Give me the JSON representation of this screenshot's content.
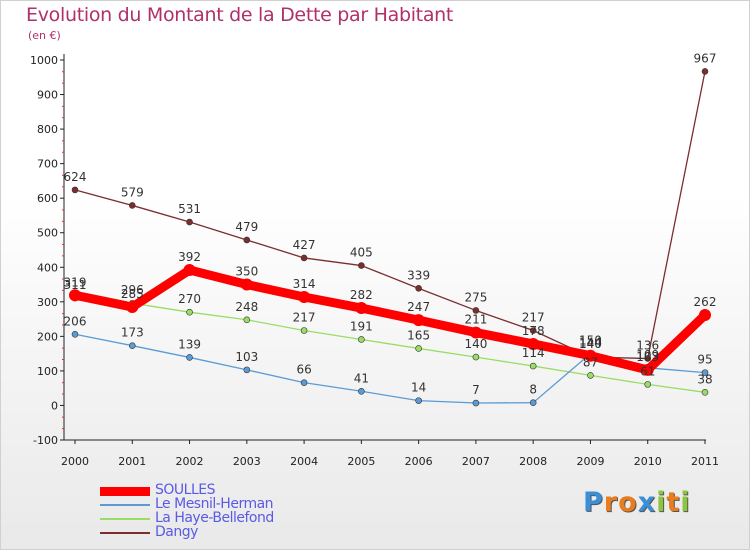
{
  "title": "Evolution du Montant de la Dette par Habitant",
  "subtitle": "(en €)",
  "logo": {
    "text": "Proxiti",
    "letters": [
      "P",
      "r",
      "o",
      "x",
      "i",
      "t",
      "i"
    ],
    "colors": [
      "#3a8fd6",
      "#e87d1f",
      "#e87d1f",
      "#3a8fd6",
      "#8cc63f",
      "#e87d1f",
      "#8cc63f"
    ]
  },
  "chart_data": {
    "type": "line",
    "title": "Evolution du Montant de la Dette par Habitant",
    "ylabel": "(en €)",
    "xlabel": "",
    "x": [
      "2000",
      "2001",
      "2002",
      "2003",
      "2004",
      "2005",
      "2006",
      "2007",
      "2008",
      "2009",
      "2010",
      "2011"
    ],
    "ylim": [
      -100,
      1000
    ],
    "yticks": [
      "-100",
      "0",
      "100",
      "200",
      "300",
      "400",
      "500",
      "600",
      "700",
      "800",
      "900",
      "1000"
    ],
    "grid": false,
    "legend_position": "bottom-left",
    "series": [
      {
        "name": "SOULLES",
        "color": "#ff0000",
        "values": [
          319,
          285,
          392,
          350,
          314,
          282,
          247,
          211,
          178,
          144,
          103,
          262
        ],
        "labels": [
          "319",
          "285",
          "392",
          "350",
          "314",
          "282",
          "247",
          "211",
          "178",
          "144",
          "103",
          "262"
        ]
      },
      {
        "name": "Le Mesnil-Herman",
        "color": "#5b9bd5",
        "values": [
          206,
          173,
          139,
          103,
          66,
          41,
          14,
          7,
          8,
          150,
          109,
          95
        ],
        "labels": [
          "206",
          "173",
          "139",
          "103",
          "66",
          "41",
          "14",
          "7",
          "8",
          "150",
          "109",
          "95"
        ]
      },
      {
        "name": "La Haye-Bellefond",
        "color": "#99dd66",
        "values": [
          311,
          296,
          270,
          248,
          217,
          191,
          165,
          140,
          114,
          87,
          61,
          38
        ],
        "labels": [
          "311",
          "296",
          "270",
          "248",
          "217",
          "191",
          "165",
          "140",
          "114",
          "87",
          "61",
          "38"
        ]
      },
      {
        "name": "Dangy",
        "color": "#7a2e2e",
        "values": [
          624,
          579,
          531,
          479,
          427,
          405,
          339,
          275,
          217,
          140,
          136,
          967
        ],
        "labels": [
          "624",
          "579",
          "531",
          "479",
          "427",
          "405",
          "339",
          "275",
          "217",
          "140",
          "136",
          "967"
        ]
      }
    ]
  }
}
